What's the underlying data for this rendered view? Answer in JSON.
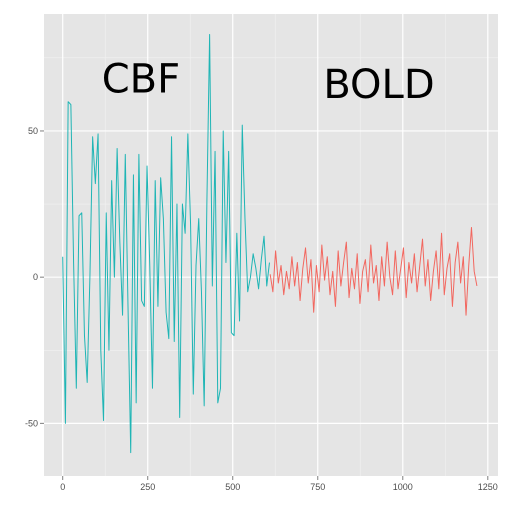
{
  "chart_data": {
    "type": "line",
    "title": "",
    "xlabel": "",
    "ylabel": "",
    "xlim": [
      -55,
      1280
    ],
    "ylim": [
      -68,
      90
    ],
    "x_ticks": [
      0,
      250,
      500,
      750,
      1000,
      1250
    ],
    "x_tick_labels": [
      "0",
      "250",
      "500",
      "750",
      "1000",
      "1250"
    ],
    "y_ticks": [
      -50,
      0,
      50
    ],
    "y_tick_labels": [
      "-50",
      "0",
      "50"
    ],
    "grid": true,
    "legend": "none",
    "annotations": [
      {
        "text": "CBF",
        "x": 230,
        "y": 68
      },
      {
        "text": "BOLD",
        "x": 930,
        "y": 66
      }
    ],
    "series": [
      {
        "color": "#1fb5b5",
        "x": [
          0,
          8,
          16,
          24,
          32,
          40,
          48,
          56,
          64,
          72,
          80,
          88,
          96,
          104,
          112,
          120,
          128,
          136,
          144,
          152,
          160,
          168,
          176,
          184,
          192,
          200,
          208,
          216,
          224,
          232,
          240,
          248,
          256,
          264,
          272,
          280,
          288,
          296,
          304,
          312,
          320,
          328,
          336,
          344,
          352,
          360,
          368,
          376,
          384,
          392,
          400,
          408,
          416,
          424,
          432,
          440,
          448,
          456,
          464,
          472,
          480,
          488,
          496,
          504,
          512,
          520,
          528,
          536,
          544,
          552,
          560,
          568,
          576,
          584,
          592,
          600,
          608
        ],
        "y": [
          7,
          -50,
          60,
          59,
          5,
          -38,
          21,
          22,
          -20,
          -36,
          0,
          48,
          32,
          49,
          -25,
          -49,
          22,
          -25,
          33,
          0,
          44,
          12,
          -13,
          42,
          -10,
          -60,
          35,
          -43,
          42,
          -8,
          -10,
          38,
          4,
          -38,
          33,
          -10,
          34,
          20,
          -12,
          -21,
          48,
          -22,
          25,
          -48,
          25,
          15,
          49,
          18,
          -40,
          4,
          20,
          -5,
          -44,
          26,
          83,
          -3,
          43,
          -43,
          -38,
          50,
          5,
          43,
          -19,
          -20,
          15,
          -15,
          52,
          20,
          -5,
          0,
          8,
          3,
          -4,
          6,
          14,
          -3,
          5
        ]
      },
      {
        "color": "#f2675f",
        "x": [
          610,
          618,
          626,
          634,
          642,
          650,
          658,
          666,
          674,
          682,
          690,
          698,
          706,
          714,
          722,
          730,
          738,
          746,
          754,
          762,
          770,
          778,
          786,
          794,
          802,
          810,
          818,
          826,
          834,
          842,
          850,
          858,
          866,
          874,
          882,
          890,
          898,
          906,
          914,
          922,
          930,
          938,
          946,
          954,
          962,
          970,
          978,
          986,
          994,
          1002,
          1010,
          1018,
          1026,
          1034,
          1042,
          1050,
          1058,
          1066,
          1074,
          1082,
          1090,
          1098,
          1106,
          1114,
          1122,
          1130,
          1138,
          1146,
          1154,
          1162,
          1170,
          1178,
          1186,
          1194,
          1202,
          1210,
          1218
        ],
        "y": [
          1,
          -5,
          9,
          -2,
          4,
          -6,
          2,
          -4,
          7,
          -3,
          5,
          -8,
          3,
          10,
          -2,
          6,
          -12,
          4,
          -5,
          11,
          -1,
          7,
          -6,
          2,
          -10,
          9,
          -3,
          5,
          12,
          -7,
          3,
          -4,
          8,
          -9,
          2,
          6,
          -5,
          11,
          -2,
          4,
          -8,
          7,
          -3,
          12,
          0,
          -6,
          9,
          -4,
          3,
          10,
          -7,
          5,
          -2,
          8,
          -5,
          4,
          13,
          -3,
          6,
          -8,
          2,
          9,
          -4,
          15,
          -6,
          3,
          8,
          -10,
          5,
          12,
          -2,
          7,
          -13,
          4,
          17,
          2,
          -3
        ]
      }
    ]
  }
}
